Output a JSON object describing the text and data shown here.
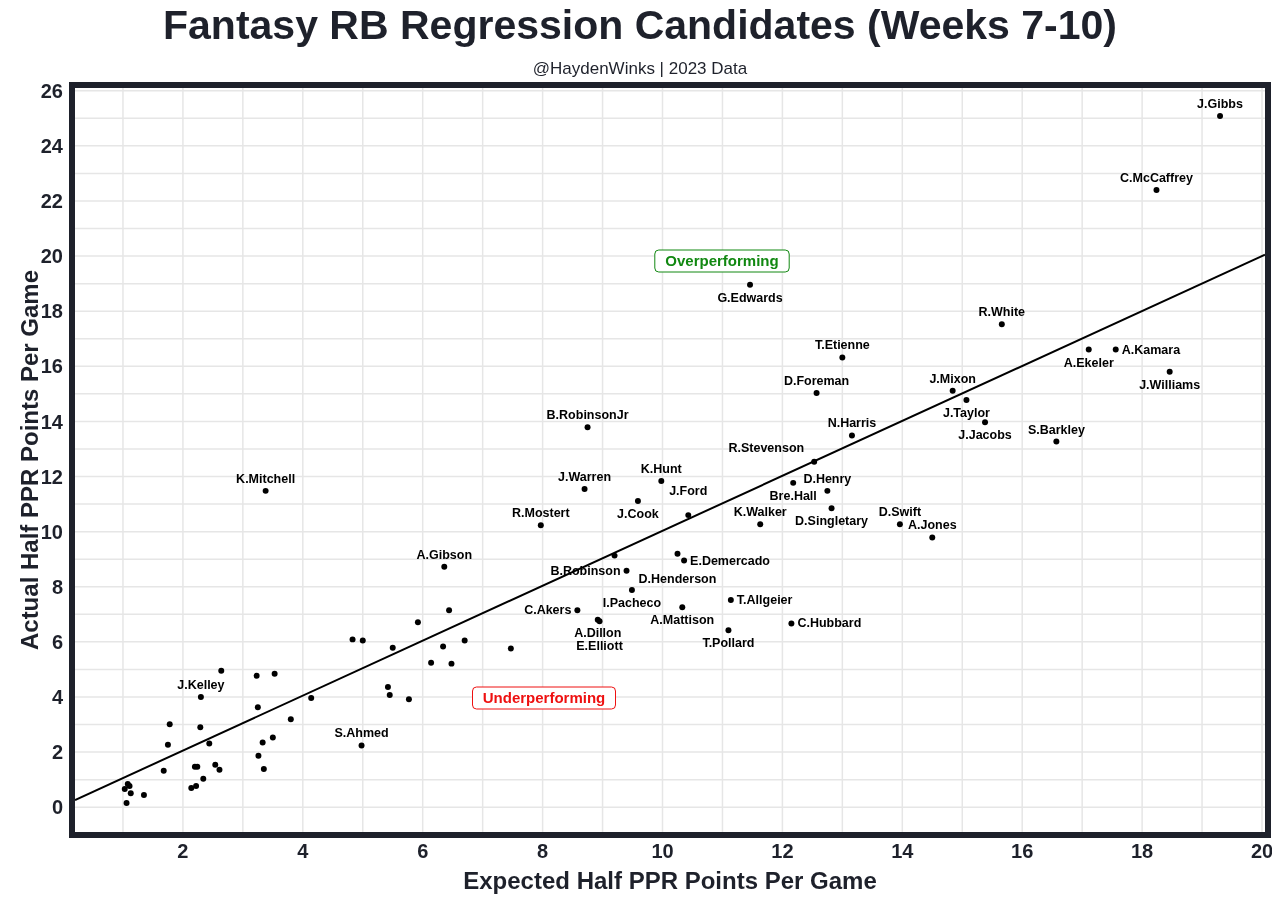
{
  "chart_data": {
    "type": "scatter",
    "title": "Fantasy RB Regression Candidates (Weeks 7-10)",
    "subtitle": "@HaydenWinks | 2023 Data",
    "xlabel": "Expected Half PPR Points Per Game",
    "ylabel": "Actual Half PPR Points Per Game",
    "xlim": [
      0.2,
      20.05
    ],
    "ylim": [
      -0.9,
      26.1
    ],
    "xticks": [
      {
        "value": 1,
        "label": null
      },
      2,
      {
        "value": 3,
        "label": null
      },
      4,
      {
        "value": 5,
        "label": null
      },
      6,
      {
        "value": 7,
        "label": null
      },
      8,
      {
        "value": 9,
        "label": null
      },
      10,
      {
        "value": 11,
        "label": null
      },
      12,
      {
        "value": 13,
        "label": null
      },
      14,
      {
        "value": 15,
        "label": null
      },
      16,
      {
        "value": 17,
        "label": null
      },
      18,
      {
        "value": 19,
        "label": null
      },
      20
    ],
    "yticks": [
      0,
      {
        "value": 1,
        "label": null
      },
      2,
      {
        "value": 3,
        "label": null
      },
      4,
      {
        "value": 5,
        "label": null
      },
      6,
      {
        "value": 7,
        "label": null
      },
      8,
      {
        "value": 9,
        "label": null
      },
      10,
      {
        "value": 11,
        "label": null
      },
      12,
      {
        "value": 13,
        "label": null
      },
      14,
      {
        "value": 15,
        "label": null
      },
      16,
      {
        "value": 17,
        "label": null
      },
      18,
      {
        "value": 19,
        "label": null
      },
      20,
      {
        "value": 21,
        "label": null
      },
      22,
      {
        "value": 23,
        "label": null
      },
      24,
      {
        "value": 25,
        "label": null
      },
      26
    ],
    "grid": true,
    "series": [
      {
        "type": "scatter",
        "color": "#000000",
        "marker": "circle",
        "x": [
          19.3,
          18.24,
          11.46,
          15.66,
          17.11,
          17.56,
          18.46,
          13.0,
          12.57,
          14.84,
          15.07,
          15.38,
          16.57,
          13.16,
          12.53,
          8.75,
          3.38,
          8.7,
          9.98,
          9.59,
          10.43,
          7.97,
          12.18,
          12.75,
          12.82,
          11.63,
          13.96,
          14.5,
          10.25,
          10.36,
          9.4,
          9.49,
          9.2,
          8.58,
          8.92,
          8.95,
          10.33,
          11.14,
          11.1,
          12.15,
          7.47,
          6.36,
          6.44,
          5.92,
          4.83,
          5.0,
          5.5,
          6.34,
          6.7,
          6.14,
          6.48,
          2.64,
          3.23,
          3.53,
          2.3,
          4.14,
          5.42,
          5.45,
          5.77,
          3.25,
          3.8,
          1.78,
          2.29,
          1.75,
          2.44,
          3.33,
          3.5,
          4.98,
          3.26,
          3.35,
          1.68,
          2.2,
          2.24,
          2.54,
          2.61,
          2.34,
          2.22,
          2.14,
          1.08,
          1.11,
          1.03,
          1.13,
          1.35,
          1.06
        ],
        "values": [
          25.08,
          22.4,
          18.96,
          17.53,
          16.61,
          16.61,
          15.8,
          16.32,
          15.03,
          15.11,
          14.78,
          13.97,
          13.27,
          13.49,
          12.54,
          13.79,
          11.48,
          11.55,
          11.84,
          11.11,
          10.6,
          10.23,
          11.77,
          11.48,
          10.85,
          10.27,
          10.27,
          9.79,
          9.2,
          8.95,
          8.58,
          7.88,
          9.13,
          7.15,
          6.8,
          6.75,
          7.26,
          7.52,
          6.42,
          6.67,
          5.76,
          8.73,
          7.15,
          6.71,
          6.09,
          6.05,
          5.79,
          5.83,
          6.05,
          5.24,
          5.21,
          4.95,
          4.77,
          4.84,
          4.0,
          3.96,
          4.36,
          4.07,
          3.92,
          3.63,
          3.19,
          3.01,
          2.9,
          2.27,
          2.31,
          2.35,
          2.53,
          2.24,
          1.87,
          1.39,
          1.32,
          1.47,
          1.47,
          1.54,
          1.36,
          1.03,
          0.77,
          0.7,
          0.84,
          0.77,
          0.66,
          0.51,
          0.44,
          0.15
        ]
      },
      {
        "type": "line",
        "color": "#000000",
        "x": [
          0.2,
          20.05
        ],
        "values": [
          0.26,
          20.05
        ]
      }
    ],
    "annotations": [
      "Overperforming",
      "Underperforming",
      {
        "text": "J.Gibbs",
        "x": 19.3,
        "y": 25.08
      },
      {
        "text": "C.McCaffrey",
        "x": 18.24,
        "y": 22.4
      },
      {
        "text": "G.Edwards",
        "x": 11.46,
        "y": 18.96
      },
      {
        "text": "R.White",
        "x": 15.66,
        "y": 17.53
      },
      {
        "text": "A.Ekeler",
        "x": 17.11,
        "y": 16.61
      },
      {
        "text": "A.Kamara",
        "x": 17.56,
        "y": 16.61
      },
      {
        "text": "J.Williams",
        "x": 18.46,
        "y": 15.8
      },
      {
        "text": "T.Etienne",
        "x": 13.0,
        "y": 16.32
      },
      {
        "text": "D.Foreman",
        "x": 12.57,
        "y": 15.03
      },
      {
        "text": "J.Mixon",
        "x": 14.84,
        "y": 15.11
      },
      {
        "text": "J.Taylor",
        "x": 15.07,
        "y": 14.78
      },
      {
        "text": "J.Jacobs",
        "x": 15.38,
        "y": 13.97
      },
      {
        "text": "S.Barkley",
        "x": 16.57,
        "y": 13.27
      },
      {
        "text": "N.Harris",
        "x": 13.16,
        "y": 13.49
      },
      {
        "text": "R.Stevenson",
        "x": 12.53,
        "y": 12.54
      },
      {
        "text": "B.RobinsonJr",
        "x": 8.75,
        "y": 13.79
      },
      {
        "text": "K.Mitchell",
        "x": 3.38,
        "y": 11.48
      },
      {
        "text": "J.Warren",
        "x": 8.7,
        "y": 11.55
      },
      {
        "text": "K.Hunt",
        "x": 9.98,
        "y": 11.84
      },
      {
        "text": "J.Cook",
        "x": 9.59,
        "y": 11.11
      },
      {
        "text": "J.Ford",
        "x": 10.43,
        "y": 10.6
      },
      {
        "text": "R.Mostert",
        "x": 7.97,
        "y": 10.23
      },
      {
        "text": "Bre.Hall",
        "x": 12.18,
        "y": 11.77
      },
      {
        "text": "D.Henry",
        "x": 12.75,
        "y": 11.48
      },
      {
        "text": "D.Singletary",
        "x": 12.82,
        "y": 10.85
      },
      {
        "text": "K.Walker",
        "x": 11.63,
        "y": 10.27
      },
      {
        "text": "D.Swift",
        "x": 13.96,
        "y": 10.27
      },
      {
        "text": "A.Jones",
        "x": 14.5,
        "y": 9.79
      },
      {
        "text": "D.Henderson",
        "x": 10.25,
        "y": 9.2
      },
      {
        "text": "E.Demercado",
        "x": 10.36,
        "y": 8.95
      },
      {
        "text": "B.Robinson",
        "x": 9.4,
        "y": 8.58
      },
      {
        "text": "I.Pacheco",
        "x": 9.49,
        "y": 7.88
      },
      {
        "text": "C.Akers",
        "x": 8.58,
        "y": 7.15
      },
      {
        "text": "A.Dillon",
        "x": 8.92,
        "y": 6.8
      },
      {
        "text": "E.Elliott",
        "x": 8.95,
        "y": 6.75
      },
      {
        "text": "A.Mattison",
        "x": 10.33,
        "y": 7.26
      },
      {
        "text": "T.Allgeier",
        "x": 11.14,
        "y": 7.52
      },
      {
        "text": "T.Pollard",
        "x": 11.1,
        "y": 6.42
      },
      {
        "text": "C.Hubbard",
        "x": 12.15,
        "y": 6.67
      },
      {
        "text": "A.Gibson",
        "x": 6.36,
        "y": 8.73
      },
      {
        "text": "J.Kelley",
        "x": 2.3,
        "y": 4.0
      },
      {
        "text": "S.Ahmed",
        "x": 4.98,
        "y": 2.24
      }
    ]
  }
}
